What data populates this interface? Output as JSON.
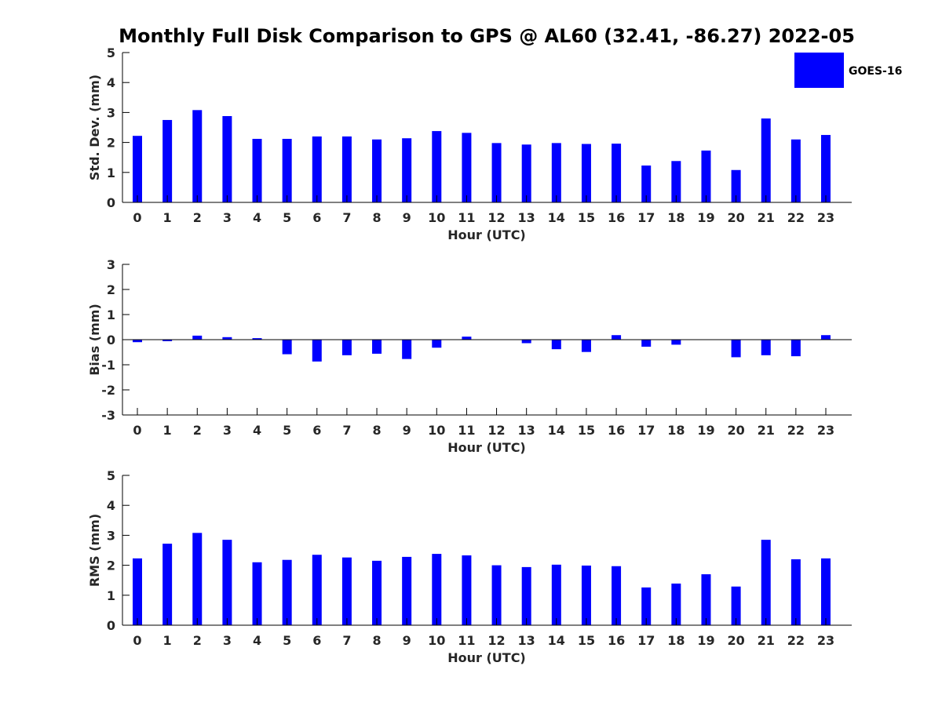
{
  "figure": {
    "title": "Monthly Full Disk Comparison to GPS @ AL60 (32.41, -86.27) 2022-05",
    "legend_label": "GOES-16",
    "bar_color": "#0000ff"
  },
  "chart_data": [
    {
      "type": "bar",
      "title": "Monthly Full Disk Comparison to GPS @ AL60 (32.41, -86.27) 2022-05",
      "xlabel": "Hour (UTC)",
      "ylabel": "Std. Dev. (mm)",
      "ylim": [
        0,
        5
      ],
      "yticks": [
        0,
        1,
        2,
        3,
        4,
        5
      ],
      "categories": [
        "0",
        "1",
        "2",
        "3",
        "4",
        "5",
        "6",
        "7",
        "8",
        "9",
        "10",
        "11",
        "12",
        "13",
        "14",
        "15",
        "16",
        "17",
        "18",
        "19",
        "20",
        "21",
        "22",
        "23"
      ],
      "legend_position": "top-right",
      "series": [
        {
          "name": "GOES-16",
          "values": [
            2.22,
            2.75,
            3.08,
            2.88,
            2.12,
            2.12,
            2.2,
            2.2,
            2.1,
            2.14,
            2.38,
            2.32,
            1.98,
            1.93,
            1.98,
            1.95,
            1.96,
            1.23,
            1.38,
            1.73,
            1.08,
            2.8,
            2.1,
            2.25
          ]
        }
      ]
    },
    {
      "type": "bar",
      "xlabel": "Hour (UTC)",
      "ylabel": "Bias (mm)",
      "ylim": [
        -3,
        3
      ],
      "yticks": [
        -3,
        -2,
        -1,
        0,
        1,
        2,
        3
      ],
      "categories": [
        "0",
        "1",
        "2",
        "3",
        "4",
        "5",
        "6",
        "7",
        "8",
        "9",
        "10",
        "11",
        "12",
        "13",
        "14",
        "15",
        "16",
        "17",
        "18",
        "19",
        "20",
        "21",
        "22",
        "23"
      ],
      "series": [
        {
          "name": "GOES-16",
          "values": [
            -0.1,
            -0.06,
            0.16,
            0.1,
            0.06,
            -0.58,
            -0.87,
            -0.62,
            -0.56,
            -0.77,
            -0.32,
            0.12,
            0.0,
            -0.14,
            -0.38,
            -0.49,
            0.18,
            -0.28,
            -0.2,
            0.0,
            -0.7,
            -0.62,
            -0.66,
            0.18
          ]
        }
      ]
    },
    {
      "type": "bar",
      "xlabel": "Hour (UTC)",
      "ylabel": "RMS (mm)",
      "ylim": [
        0,
        5
      ],
      "yticks": [
        0,
        1,
        2,
        3,
        4,
        5
      ],
      "categories": [
        "0",
        "1",
        "2",
        "3",
        "4",
        "5",
        "6",
        "7",
        "8",
        "9",
        "10",
        "11",
        "12",
        "13",
        "14",
        "15",
        "16",
        "17",
        "18",
        "19",
        "20",
        "21",
        "22",
        "23"
      ],
      "series": [
        {
          "name": "GOES-16",
          "values": [
            2.23,
            2.72,
            3.08,
            2.85,
            2.1,
            2.18,
            2.35,
            2.26,
            2.15,
            2.28,
            2.38,
            2.33,
            2.0,
            1.94,
            2.02,
            1.99,
            1.97,
            1.26,
            1.39,
            1.7,
            1.29,
            2.85,
            2.2,
            2.23
          ]
        }
      ]
    }
  ]
}
